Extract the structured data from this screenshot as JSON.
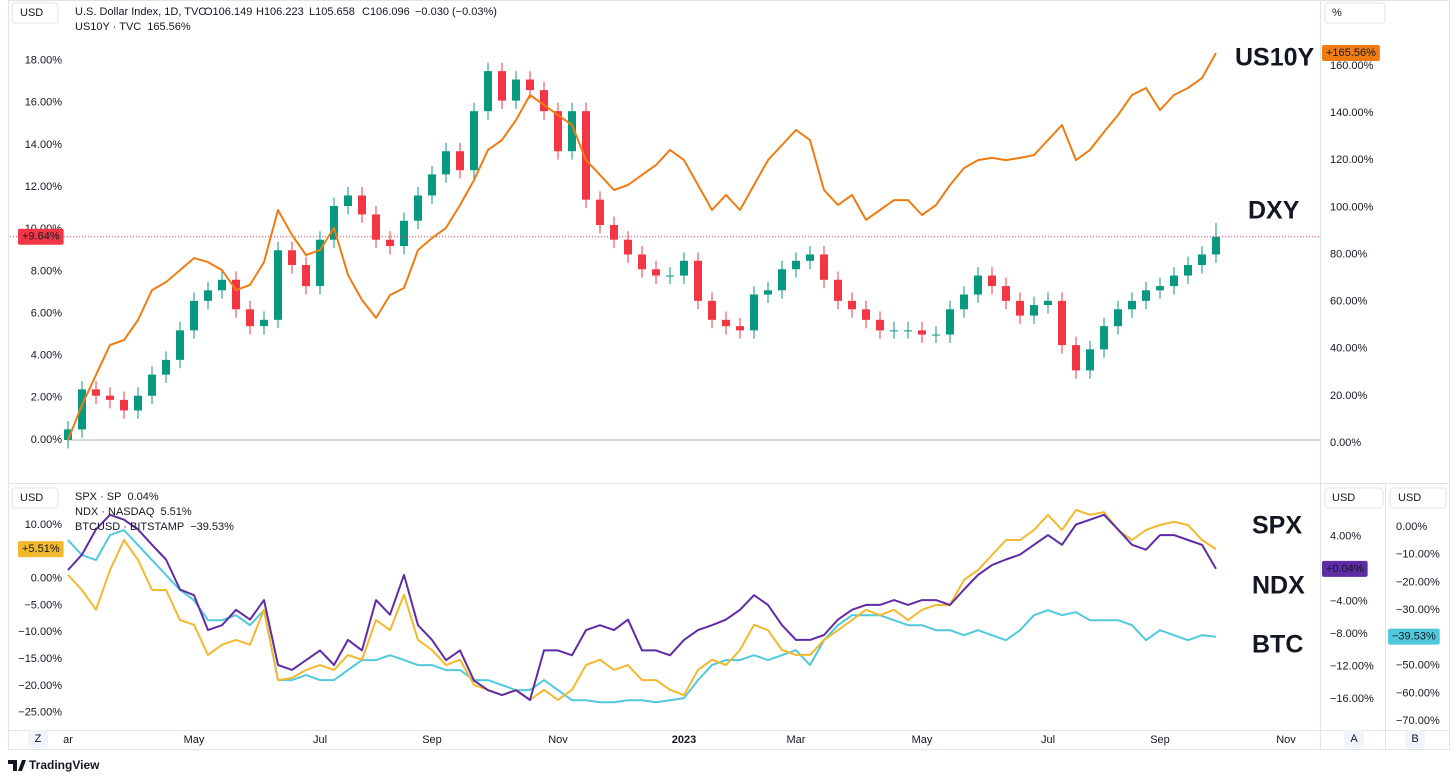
{
  "chart_data": [
    {
      "type": "candlestick",
      "title": "U.S. Dollar Index, 1D, TVC",
      "ohlc_labels": [
        "O106.149",
        "H106.223",
        "L105.658",
        "C106.096"
      ],
      "change_label": "−0.030 (−0.03%)",
      "y_unit": "USD",
      "y2_unit": "%",
      "ylim": [
        -1.9,
        20.4
      ],
      "yticks": [
        {
          "value": 0,
          "label": "0.00%"
        },
        {
          "value": 2,
          "label": "2.00%"
        },
        {
          "value": 4,
          "label": "4.00%"
        },
        {
          "value": 6,
          "label": "6.00%"
        },
        {
          "value": 8,
          "label": "8.00%"
        },
        {
          "value": 10,
          "label": "10.00%"
        },
        {
          "value": 12,
          "label": "12.00%"
        },
        {
          "value": 14,
          "label": "14.00%"
        },
        {
          "value": 16,
          "label": "16.00%"
        },
        {
          "value": 18,
          "label": "18.00%"
        }
      ],
      "y2lim": [
        -15.7,
        183.8
      ],
      "y2ticks": [
        {
          "value": 0,
          "label": "0.00%"
        },
        {
          "value": 20,
          "label": "20.00%"
        },
        {
          "value": 40,
          "label": "40.00%"
        },
        {
          "value": 60,
          "label": "60.00%"
        },
        {
          "value": 80,
          "label": "80.00%"
        },
        {
          "value": 100,
          "label": "100.00%"
        },
        {
          "value": 120,
          "label": "120.00%"
        },
        {
          "value": 140,
          "label": "140.00%"
        },
        {
          "value": 160,
          "label": "160.00%"
        }
      ],
      "grid": false,
      "series": [
        {
          "name": "U.S. Dollar Index, 1D, TVC",
          "kind": "candle",
          "axis": "y",
          "up_color": "#089981",
          "down_color": "#f23645",
          "badge": "+9.64%",
          "annotation": "DXY",
          "open": [
            0.0,
            0.5,
            2.4,
            2.1,
            1.9,
            1.4,
            2.1,
            3.1,
            3.8,
            5.2,
            6.6,
            7.1,
            7.6,
            6.2,
            5.4,
            5.7,
            9.0,
            8.3,
            7.3,
            9.5,
            11.1,
            11.6,
            10.7,
            9.5,
            9.2,
            10.4,
            11.6,
            12.6,
            13.7,
            12.8,
            15.6,
            17.5,
            16.1,
            17.1,
            16.6,
            15.6,
            13.7,
            15.6,
            11.4,
            10.2,
            9.5,
            8.8,
            8.1,
            7.8,
            7.8,
            8.5,
            6.6,
            5.7,
            5.4,
            5.2,
            6.9,
            7.1,
            8.1,
            8.5,
            8.8,
            7.6,
            6.6,
            6.2,
            5.7,
            5.2,
            5.2,
            5.2,
            5.0,
            5.0,
            6.2,
            6.9,
            7.8,
            7.3,
            6.6,
            5.9,
            6.4,
            6.6,
            4.5,
            3.3,
            4.3,
            5.4,
            6.2,
            6.6,
            7.1,
            7.3,
            7.8,
            8.3,
            8.8,
            null,
            null,
            null,
            null,
            null,
            null
          ],
          "high": [
            0.9,
            2.8,
            2.8,
            2.5,
            2.3,
            2.5,
            3.5,
            4.2,
            5.6,
            7.0,
            7.5,
            8.0,
            8.0,
            6.6,
            6.1,
            9.4,
            9.4,
            8.7,
            9.9,
            11.5,
            12.0,
            12.0,
            11.1,
            9.9,
            10.8,
            12.0,
            13.0,
            14.1,
            14.1,
            16.0,
            17.9,
            17.9,
            17.5,
            17.5,
            17.0,
            16.0,
            16.0,
            16.0,
            11.8,
            10.6,
            9.9,
            9.2,
            8.5,
            8.2,
            8.9,
            8.9,
            7.0,
            6.1,
            5.8,
            7.3,
            7.5,
            8.5,
            8.9,
            9.2,
            9.2,
            8.0,
            7.0,
            6.6,
            6.1,
            5.6,
            5.6,
            5.6,
            5.4,
            6.6,
            7.3,
            8.2,
            8.2,
            7.7,
            7.0,
            6.8,
            7.0,
            7.0,
            4.9,
            4.7,
            5.8,
            6.6,
            7.0,
            7.5,
            7.7,
            8.2,
            8.7,
            9.2,
            10.3,
            null,
            null,
            null,
            null,
            null,
            null
          ],
          "low": [
            -0.4,
            0.1,
            1.7,
            1.5,
            1.0,
            1.0,
            1.7,
            2.7,
            3.4,
            4.8,
            6.2,
            6.7,
            5.8,
            5.0,
            5.0,
            5.3,
            7.9,
            6.9,
            6.9,
            9.1,
            10.7,
            10.3,
            9.1,
            8.8,
            8.8,
            10.0,
            11.2,
            12.2,
            12.4,
            12.4,
            15.2,
            15.7,
            15.7,
            16.2,
            15.2,
            13.3,
            13.3,
            11.0,
            9.8,
            9.1,
            8.4,
            7.7,
            7.4,
            7.4,
            7.4,
            6.2,
            5.3,
            5.0,
            4.8,
            4.8,
            6.5,
            6.7,
            7.7,
            8.1,
            7.2,
            6.2,
            5.8,
            5.3,
            4.8,
            4.8,
            4.8,
            4.6,
            4.6,
            4.6,
            5.8,
            6.5,
            6.9,
            6.2,
            5.5,
            5.5,
            6.0,
            4.1,
            2.9,
            2.9,
            3.9,
            5.0,
            5.8,
            6.2,
            6.7,
            6.9,
            7.4,
            7.9,
            8.4,
            null,
            null,
            null,
            null,
            null,
            null
          ],
          "close": [
            0.5,
            2.4,
            2.1,
            1.9,
            1.4,
            2.1,
            3.1,
            3.8,
            5.2,
            6.6,
            7.1,
            7.6,
            6.2,
            5.4,
            5.7,
            9.0,
            8.3,
            7.3,
            9.5,
            11.1,
            11.6,
            10.7,
            9.5,
            9.2,
            10.4,
            11.6,
            12.6,
            13.7,
            12.8,
            15.6,
            17.5,
            16.1,
            17.1,
            16.6,
            15.6,
            13.7,
            15.6,
            11.4,
            10.2,
            9.5,
            8.8,
            8.1,
            7.8,
            7.8,
            8.5,
            6.6,
            5.7,
            5.4,
            5.2,
            6.9,
            7.1,
            8.1,
            8.5,
            8.8,
            7.6,
            6.6,
            6.2,
            5.7,
            5.2,
            5.2,
            5.2,
            5.0,
            5.0,
            6.2,
            6.9,
            7.8,
            7.3,
            6.6,
            5.9,
            6.4,
            6.6,
            4.5,
            3.3,
            4.3,
            5.4,
            6.2,
            6.6,
            7.1,
            7.3,
            7.8,
            8.3,
            8.8,
            9.64,
            null,
            null,
            null,
            null,
            null,
            null
          ]
        },
        {
          "name": "US10Y · TVC",
          "kind": "line",
          "axis": "y2",
          "color": "#ef7c12",
          "legend_value": "165.56%",
          "badge": "+165.56%",
          "annotation": "US10Y",
          "values": [
            1.3,
            16.1,
            28.9,
            41.6,
            43.7,
            52.2,
            64.9,
            68.3,
            73.4,
            78.5,
            76.8,
            73.4,
            64.9,
            67.1,
            76.8,
            98.9,
            88.3,
            79.8,
            81.9,
            91.3,
            71.3,
            60.7,
            53.1,
            62.8,
            65.8,
            81.9,
            87.0,
            91.3,
            101.0,
            111.6,
            124.4,
            128.6,
            137.1,
            147.7,
            143.5,
            139.2,
            135.0,
            120.1,
            113.8,
            107.4,
            109.5,
            113.8,
            118.0,
            124.4,
            120.1,
            109.5,
            98.9,
            105.3,
            98.9,
            109.5,
            120.1,
            126.5,
            132.9,
            128.6,
            107.4,
            101.0,
            105.3,
            94.7,
            98.9,
            103.1,
            103.1,
            96.8,
            101.0,
            109.5,
            116.7,
            120.1,
            121.0,
            120.1,
            121.0,
            122.2,
            128.6,
            135.0,
            120.1,
            124.4,
            132.0,
            139.2,
            147.7,
            150.7,
            141.3,
            147.7,
            150.7,
            154.9,
            165.56,
            null,
            null,
            null,
            null,
            null,
            null
          ]
        }
      ]
    },
    {
      "type": "line",
      "y_unit": "USD",
      "y2_unit": "USD",
      "y3_unit": "USD",
      "categories": [
        "ar",
        null,
        null,
        null,
        null,
        null,
        null,
        null,
        null,
        "May",
        null,
        null,
        null,
        null,
        null,
        null,
        null,
        null,
        "Jul",
        null,
        null,
        null,
        null,
        null,
        null,
        null,
        "Sep",
        null,
        null,
        null,
        null,
        null,
        null,
        null,
        null,
        "Nov",
        null,
        null,
        null,
        null,
        null,
        null,
        null,
        null,
        "2023",
        null,
        null,
        null,
        null,
        null,
        null,
        null,
        "Mar",
        null,
        null,
        null,
        null,
        null,
        null,
        null,
        null,
        "May",
        null,
        null,
        null,
        null,
        null,
        null,
        null,
        null,
        "Jul",
        null,
        null,
        null,
        null,
        null,
        null,
        null,
        "Sep",
        null,
        null,
        null,
        null,
        null,
        null,
        null,
        null,
        "Nov",
        null
      ],
      "ylim": [
        -28.2,
        16.9
      ],
      "yticks": [
        {
          "value": 10,
          "label": "10.00%"
        },
        {
          "value": 5,
          "label": "5.00%"
        },
        {
          "value": 0,
          "label": "0.00%"
        },
        {
          "value": -5,
          "label": "−5.00%"
        },
        {
          "value": -10,
          "label": "−10.00%"
        },
        {
          "value": -15,
          "label": "−15.00%"
        },
        {
          "value": -20,
          "label": "−20.00%"
        },
        {
          "value": -25,
          "label": "−25.00%"
        }
      ],
      "y2lim": [
        -19.8,
        10.0
      ],
      "y2ticks": [
        {
          "value": 4,
          "label": "4.00%"
        },
        {
          "value": -4,
          "label": "−4.00%"
        },
        {
          "value": -8,
          "label": "−8.00%"
        },
        {
          "value": -12,
          "label": "−12.00%"
        },
        {
          "value": -16,
          "label": "−16.00%"
        }
      ],
      "y3lim": [
        -73.2,
        14.1
      ],
      "y3ticks": [
        {
          "value": 0,
          "label": "0.00%"
        },
        {
          "value": -10,
          "label": "−10.00%"
        },
        {
          "value": -20,
          "label": "−20.00%"
        },
        {
          "value": -30,
          "label": "−30.00%"
        },
        {
          "value": -40,
          "label": "−40.00%"
        },
        {
          "value": -50,
          "label": "−50.00%"
        },
        {
          "value": -60,
          "label": "−60.00%"
        },
        {
          "value": -70,
          "label": "−70.00%"
        }
      ],
      "grid": false,
      "series": [
        {
          "name": "SPX · SP",
          "axis": "y2",
          "color": "#5e2ca5",
          "legend_value": "0.04%",
          "badge": "+0.04%",
          "annotation": "SPX",
          "values": [
            -0.1,
            1.8,
            4.9,
            6.7,
            6.1,
            4.9,
            3.0,
            1.2,
            -2.5,
            -3.2,
            -7.5,
            -6.9,
            -5.0,
            -6.2,
            -3.8,
            -11.8,
            -12.4,
            -11.2,
            -10.0,
            -11.8,
            -8.7,
            -10.0,
            -3.8,
            -5.6,
            -0.7,
            -6.9,
            -8.7,
            -11.2,
            -10.0,
            -13.7,
            -14.9,
            -15.5,
            -14.9,
            -16.1,
            -10.0,
            -10.0,
            -10.6,
            -7.5,
            -6.9,
            -7.5,
            -6.2,
            -10.0,
            -10.0,
            -10.6,
            -8.7,
            -7.5,
            -6.9,
            -6.2,
            -5.0,
            -3.2,
            -4.4,
            -6.9,
            -8.7,
            -8.7,
            -8.1,
            -6.2,
            -5.0,
            -4.4,
            -4.4,
            -3.8,
            -4.4,
            -3.8,
            -3.8,
            -4.4,
            -2.5,
            -0.7,
            0.5,
            1.2,
            1.8,
            3.0,
            4.2,
            3.0,
            5.5,
            6.1,
            6.7,
            4.9,
            3.0,
            2.4,
            4.2,
            4.2,
            3.6,
            3.0,
            0.04,
            null,
            null,
            null,
            null,
            null,
            null
          ]
        },
        {
          "name": "NDX · NASDAQ",
          "axis": "y",
          "color": "#f2b82e",
          "legend_value": "5.51%",
          "badge": "+5.51%",
          "annotation": "NDX",
          "values": [
            0.7,
            -2.1,
            -5.8,
            1.6,
            7.2,
            3.5,
            -2.1,
            -2.1,
            -7.7,
            -8.6,
            -14.2,
            -12.3,
            -11.4,
            -12.3,
            -5.8,
            -18.9,
            -18.5,
            -17.0,
            -16.1,
            -17.0,
            -14.2,
            -15.1,
            -7.7,
            -9.6,
            -3.0,
            -11.4,
            -13.3,
            -16.1,
            -15.1,
            -19.8,
            -20.7,
            -21.7,
            -20.7,
            -22.6,
            -20.7,
            -22.6,
            -20.7,
            -16.1,
            -15.1,
            -17.0,
            -16.1,
            -18.9,
            -18.9,
            -20.7,
            -21.7,
            -17.0,
            -15.1,
            -16.1,
            -13.3,
            -8.6,
            -9.6,
            -13.3,
            -14.2,
            -14.2,
            -11.4,
            -9.6,
            -7.7,
            -5.8,
            -6.8,
            -5.8,
            -7.7,
            -5.8,
            -4.9,
            -4.9,
            -0.2,
            1.6,
            4.4,
            7.2,
            7.2,
            9.1,
            11.9,
            9.1,
            12.8,
            11.9,
            12.4,
            9.1,
            7.2,
            9.1,
            10.0,
            10.6,
            10.0,
            7.2,
            5.51,
            null,
            null,
            null,
            null,
            null,
            null
          ]
        },
        {
          "name": "BTCUSD · BITSTAMP",
          "axis": "y3",
          "color": "#4fc9db",
          "legend_value": "−39.53%",
          "badge": "−39.53%",
          "annotation": "BTC",
          "values": [
            -4.7,
            -10.1,
            -11.9,
            -2.9,
            -1.1,
            -6.5,
            -11.9,
            -17.3,
            -22.7,
            -26.4,
            -33.6,
            -33.6,
            -31.8,
            -35.4,
            -30.0,
            -55.2,
            -55.2,
            -53.4,
            -55.2,
            -55.2,
            -51.6,
            -48.0,
            -48.0,
            -46.2,
            -48.0,
            -49.8,
            -49.8,
            -51.6,
            -51.6,
            -55.2,
            -55.2,
            -57.0,
            -58.8,
            -58.8,
            -55.2,
            -58.8,
            -62.5,
            -62.5,
            -63.2,
            -63.2,
            -62.5,
            -62.5,
            -63.2,
            -62.5,
            -61.7,
            -55.2,
            -49.8,
            -48.0,
            -48.0,
            -46.2,
            -48.0,
            -46.2,
            -44.4,
            -49.8,
            -40.8,
            -35.4,
            -31.8,
            -31.8,
            -31.8,
            -33.6,
            -35.4,
            -35.4,
            -37.2,
            -37.2,
            -39.0,
            -37.2,
            -39.0,
            -40.8,
            -37.2,
            -31.8,
            -30.0,
            -31.8,
            -30.7,
            -33.6,
            -33.6,
            -33.6,
            -35.4,
            -40.8,
            -37.2,
            -39.0,
            -40.8,
            -39.0,
            -39.53,
            null,
            null,
            null,
            null,
            null,
            null
          ]
        }
      ]
    }
  ],
  "ui": {
    "buttons": [
      "Z",
      "A",
      "B"
    ],
    "brand": "TradingView"
  }
}
